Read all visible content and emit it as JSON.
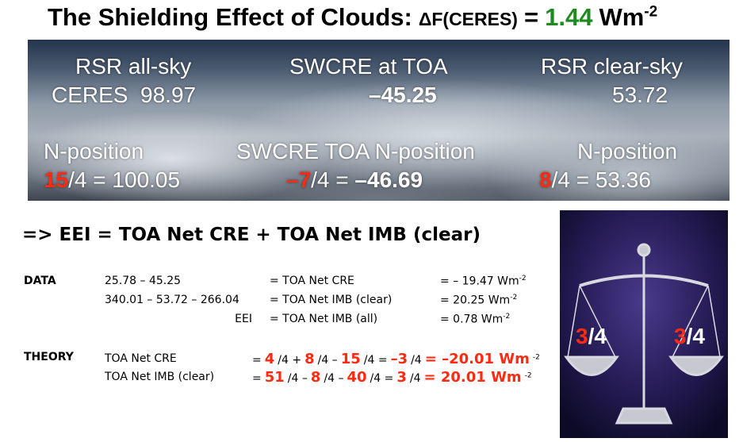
{
  "title": {
    "text": "The Shielding Effect of Clouds:",
    "symbol": "ΔF(CERES)",
    "equals": "=",
    "value": "1.44",
    "unit": "Wm",
    "exponent": "-2"
  },
  "banner": {
    "all_sky": {
      "heading": "RSR all-sky",
      "label": "CERES",
      "value": "98.97",
      "n_heading": "N-position",
      "n_numerator": "15",
      "n_rest": "/4 = 100.05"
    },
    "swcre": {
      "heading": "SWCRE at TOA",
      "value": "–45.25",
      "n_heading": "SWCRE TOA N-position",
      "n_numerator": "–7",
      "n_rest": "/4 =",
      "n_value": "–46.69"
    },
    "clear_sky": {
      "heading": "RSR clear-sky",
      "value": "53.72",
      "n_heading": "N-position",
      "n_numerator": "8",
      "n_rest": "/4 = 53.36"
    }
  },
  "equation": "=> EEI = TOA Net CRE + TOA Net IMB (clear)",
  "data": {
    "label": "DATA",
    "rows": [
      [
        "25.78 – 45.25",
        "= TOA Net CRE",
        "= – 19.47 Wm",
        "-2"
      ],
      [
        "340.01 – 53.72 – 266.04",
        "= TOA Net IMB (clear)",
        "= 20.25 Wm",
        "-2"
      ],
      [
        "EEI",
        "= TOA Net IMB (all)",
        "= 0.78 Wm",
        "-2"
      ]
    ]
  },
  "theory": {
    "label": "THEORY",
    "rows": [
      {
        "name": "TOA Net CRE",
        "parts": [
          "=",
          "4",
          "/4 +",
          "8",
          "/4 –",
          "15",
          "/4 =",
          "–3",
          "/4",
          "= –20.01 Wm"
        ],
        "exponent": "-2"
      },
      {
        "name": "TOA Net IMB (clear)",
        "parts": [
          "=",
          "51",
          "/4 –",
          "8",
          "/4 –",
          "40",
          "/4 =",
          "3",
          "/4",
          "= 20.01 Wm"
        ],
        "exponent": "-2"
      }
    ]
  },
  "balance": {
    "left": {
      "numerator": "3",
      "rest": "/4"
    },
    "right": {
      "numerator": "3",
      "rest": "/4"
    }
  }
}
